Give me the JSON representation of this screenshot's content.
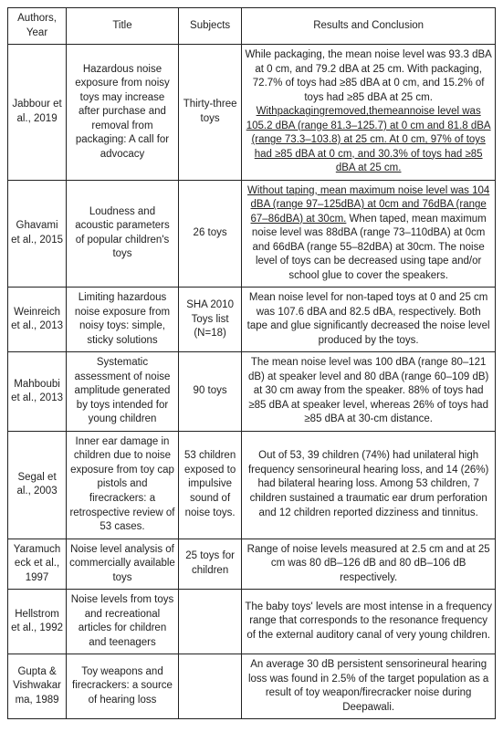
{
  "columns": {
    "authors": "Authors, Year",
    "title": "Title",
    "subjects": "Subjects",
    "results": "Results and Conclusion"
  },
  "rows": [
    {
      "authors": "Jabbour et al., 2019",
      "title": "Hazardous noise exposure from noisy toys may increase after purchase and removal from packaging: A call for advocacy",
      "subjects": "Thirty-three toys",
      "results_parts": [
        {
          "text": "While packaging, the   mean noise level was 93.3   dBA at 0 cm, and 79.2 dBA at 25 cm. With packaging, 72.7% of toys had ≥85 dBA at 0 cm, and 15.2% of toys had ≥85   dBA at 25 cm.",
          "underline": false
        },
        {
          "text": " Withpackagingremoved,themeannoise level was 105.2 dBA (range 81.3–125.7) at 0  cm and 81.8 dBA (range 73.3–103.8) at   25 cm. At 0 cm, 97% of toys had ≥85 dBA at 0 cm, and 30.3% of toys had ≥85   dBA at 25 cm.",
          "underline": true
        }
      ]
    },
    {
      "authors": "Ghavami et al., 2015",
      "title": "Loudness   and acoustic parameters of popular children's toys",
      "subjects": "26 toys",
      "results_parts": [
        {
          "text": "Without   taping, mean maximum noise level was 104 dBA (range 97–125dBA) at 0cm and 76dBA   (range 67–86dBA) at 30cm.",
          "underline": true
        },
        {
          "text": "   When taped, mean maximum noise level was 88dBA (range 73–110dBA) at 0cm and 66dBA   (range 55–82dBA) at 30cm. The noise level of toys can be decreased using   tape and/or school glue to cover the speakers.",
          "underline": false
        }
      ]
    },
    {
      "authors": "Weinreich et al., 2013",
      "title": "Limiting   hazardous noise exposure from noisy toys: simple, sticky solutions",
      "subjects": "SHA 2010 Toys list (N=18)",
      "results_parts": [
        {
          "text": "Mean noise level for non-taped toys at   0 and 25 cm was 107.6 dBA and 82.5 dBA, respectively. Both tape and glue significantly   decreased the noise level produced by the toys.",
          "underline": false
        }
      ]
    },
    {
      "authors": "Mahboubi et al., 2013",
      "title": "Systematic assessment of noise amplitude generated by toys intended for young children",
      "subjects": "90 toys",
      "results_parts": [
        {
          "text": "The mean noise level was 100 dBA   (range 80–121 dB) at speaker level and 80 dBA (range 60–109 dB) at 30 cm   away from the speaker. 88% of toys had ≥85 dBA at speaker level, whereas   26% of toys had ≥85 dBA at 30-cm distance.",
          "underline": false
        }
      ]
    },
    {
      "authors": "Segal et al., 2003",
      "title": "Inner ear damage in children due to noise   exposure from toy cap pistols and firecrackers: a retrospective review of 53   cases.",
      "subjects": "53 children exposed to impulsive sound of noise toys.",
      "results_parts": [
        {
          "text": "Out of 53, 39 children (74%) had unilateral high   frequency sensorineural hearing loss, and 14 (26%) had bilateral hearing   loss. Among 53 children, 7 children sustained a traumatic ear drum   perforation and 12 children reported dizziness and tinnitus.",
          "underline": false
        }
      ]
    },
    {
      "authors": "Yaramucheck et al., 1997",
      "title": "Noise level analysis of commercially   available toys",
      "subjects": "25 toys for children",
      "results_parts": [
        {
          "text": "Range of noise levels measured at 2.5 cm and at 25 cm was 80 dB–126   dB and 80 dB–106 dB   respectively.",
          "underline": false
        }
      ]
    },
    {
      "authors": "Hellstrom et al., 1992",
      "title": "Noise   levels from toys and recreational articles for children and teenagers",
      "subjects": "",
      "results_parts": [
        {
          "text": "The baby toys' levels are most intense   in a frequency range that corresponds to the resonance frequency of the   external auditory canal of very young children.",
          "underline": false
        }
      ]
    },
    {
      "authors": "Gupta & Vishwakarma, 1989",
      "title": "Toy   weapons and firecrackers: a source of hearing loss",
      "subjects": "",
      "results_parts": [
        {
          "text": "An average 30 dB   persistent sensorineural hearing loss was found in 2.5% of the target   population as a result of toy weapon/firecracker noise during Deepawali.",
          "underline": false
        }
      ]
    }
  ]
}
